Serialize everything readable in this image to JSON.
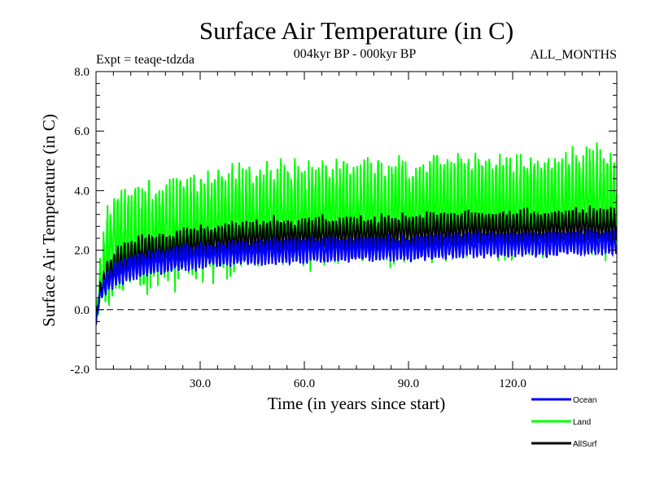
{
  "chart_data": {
    "type": "line",
    "title": "Surface Air Temperature (in C)",
    "subtitle": "004kyr BP - 000kyr BP",
    "left_label": "Expt = teaqe-tdzda",
    "right_label": "ALL_MONTHS",
    "xlabel": "Time (in years since start)",
    "ylabel": "Surface Air Temperature (in C)",
    "xlim": [
      0,
      150
    ],
    "ylim": [
      -2.0,
      8.0
    ],
    "x_ticks": [
      30,
      60,
      90,
      120
    ],
    "x_tick_labels": [
      "30.0",
      "60.0",
      "90.0",
      "120.0"
    ],
    "y_ticks": [
      -2,
      0,
      2,
      4,
      6,
      8
    ],
    "y_tick_labels": [
      "-2.0",
      "0.0",
      "2.0",
      "4.0",
      "6.0",
      "8.0"
    ],
    "reference_line": {
      "y": 0.0,
      "style": "dashed"
    },
    "legend_position": "bottom-right",
    "series": [
      {
        "name": "Land",
        "color": "#00ff00",
        "cycles_per_year": 1,
        "baseline_years": [
          0,
          1,
          3,
          6,
          10,
          15,
          20,
          30,
          40,
          50,
          60,
          70,
          80,
          90,
          100,
          110,
          120,
          130,
          140,
          150
        ],
        "baseline_values": [
          -0.3,
          0.8,
          1.8,
          2.3,
          2.4,
          2.5,
          2.6,
          2.8,
          3.0,
          3.1,
          3.15,
          3.2,
          3.3,
          3.3,
          3.4,
          3.5,
          3.4,
          3.5,
          3.6,
          3.6
        ],
        "seasonal_amplitude": 1.4
      },
      {
        "name": "AllSurf",
        "color": "#000000",
        "cycles_per_year": 1,
        "baseline_years": [
          0,
          1,
          3,
          6,
          10,
          15,
          20,
          30,
          40,
          50,
          60,
          70,
          80,
          90,
          100,
          110,
          120,
          130,
          140,
          150
        ],
        "baseline_values": [
          -0.4,
          0.5,
          1.1,
          1.5,
          1.75,
          1.9,
          2.0,
          2.2,
          2.35,
          2.45,
          2.5,
          2.5,
          2.55,
          2.6,
          2.65,
          2.75,
          2.7,
          2.75,
          2.8,
          2.8
        ],
        "seasonal_amplitude": 0.5
      },
      {
        "name": "Ocean",
        "color": "#0000ff",
        "cycles_per_year": 1,
        "baseline_years": [
          0,
          1,
          3,
          6,
          10,
          15,
          20,
          30,
          40,
          50,
          60,
          70,
          80,
          90,
          100,
          110,
          120,
          130,
          140,
          150
        ],
        "baseline_values": [
          -0.4,
          0.4,
          0.9,
          1.2,
          1.4,
          1.55,
          1.65,
          1.8,
          1.9,
          1.95,
          2.0,
          2.0,
          2.05,
          2.05,
          2.1,
          2.2,
          2.2,
          2.2,
          2.25,
          2.25
        ],
        "seasonal_amplitude": 0.35
      }
    ],
    "legend_order": [
      "Ocean",
      "Land",
      "AllSurf"
    ]
  }
}
